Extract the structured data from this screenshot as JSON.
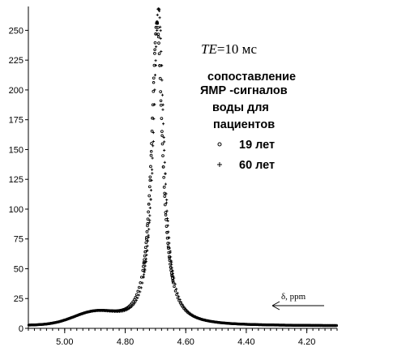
{
  "chart_data": {
    "type": "scatter",
    "x_reversed": true,
    "xlim": [
      5.12,
      4.1
    ],
    "ylim": [
      0,
      270
    ],
    "x_ticks": [
      5.0,
      4.8,
      4.6,
      4.4,
      4.2
    ],
    "x_tick_labels": [
      "5.00",
      "4.80",
      "4.60",
      "4.40",
      "4.20"
    ],
    "y_ticks": [
      0,
      25,
      50,
      75,
      100,
      125,
      150,
      175,
      200,
      225,
      250
    ],
    "y_tick_labels": [
      "0",
      "25",
      "50",
      "75",
      "100",
      "125",
      "150",
      "175",
      "200",
      "225",
      "250"
    ],
    "te_label_var": "TE",
    "te_label_value": "=10 мс",
    "annotation_lines": [
      "сопоставление",
      "ЯМР -сигналов",
      "воды для",
      "пациентов"
    ],
    "series": [
      {
        "name": "19 лет",
        "marker": "circle",
        "peak_x": 4.695,
        "peak_y": 255,
        "hwhm": 0.022,
        "baseline": 2
      },
      {
        "name": "60 лет",
        "marker": "plus",
        "peak_x": 4.69,
        "peak_y": 268,
        "hwhm": 0.021,
        "baseline": 2
      }
    ],
    "axis_arrow_label": "δ, ppm",
    "arrow_direction": "left",
    "grid": false
  }
}
